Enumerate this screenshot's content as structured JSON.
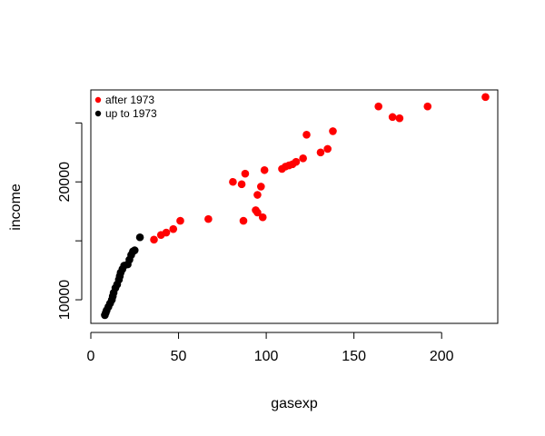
{
  "chart_data": {
    "type": "scatter",
    "title": "",
    "xlabel": "gasexp",
    "ylabel": "income",
    "xlim": [
      0,
      232
    ],
    "ylim": [
      8000,
      27800
    ],
    "x_ticks": [
      0,
      50,
      100,
      150,
      200
    ],
    "y_ticks": [
      10000,
      15000,
      20000,
      25000
    ],
    "y_tick_labels_shown": [
      "10000",
      "20000"
    ],
    "grid": false,
    "legend": {
      "placement": "top-left",
      "entries": [
        {
          "label": "after 1973",
          "color": "#ff0000"
        },
        {
          "label": "up to 1973",
          "color": "#000000"
        }
      ]
    },
    "series": [
      {
        "name": "after 1973",
        "color": "#ff0000",
        "points": [
          [
            36,
            15100
          ],
          [
            40,
            15500
          ],
          [
            43,
            15700
          ],
          [
            47,
            16000
          ],
          [
            51,
            16700
          ],
          [
            67,
            16850
          ],
          [
            81,
            20000
          ],
          [
            86,
            19800
          ],
          [
            87,
            16700
          ],
          [
            88,
            20700
          ],
          [
            94,
            17600
          ],
          [
            95,
            17400
          ],
          [
            95,
            18900
          ],
          [
            97,
            19600
          ],
          [
            98,
            17000
          ],
          [
            99,
            21000
          ],
          [
            109,
            21100
          ],
          [
            111,
            21300
          ],
          [
            113,
            21400
          ],
          [
            115,
            21500
          ],
          [
            117,
            21700
          ],
          [
            121,
            22000
          ],
          [
            123,
            24000
          ],
          [
            131,
            22500
          ],
          [
            135,
            22800
          ],
          [
            138,
            24300
          ],
          [
            164,
            26400
          ],
          [
            172,
            25500
          ],
          [
            176,
            25400
          ],
          [
            192,
            26400
          ],
          [
            225,
            27200
          ]
        ]
      },
      {
        "name": "up to 1973",
        "color": "#000000",
        "points": [
          [
            8,
            8700
          ],
          [
            8.5,
            8900
          ],
          [
            9,
            9100
          ],
          [
            10,
            9400
          ],
          [
            11,
            9700
          ],
          [
            12,
            10000
          ],
          [
            12.5,
            10300
          ],
          [
            13,
            10600
          ],
          [
            14,
            11000
          ],
          [
            15,
            11300
          ],
          [
            16,
            11700
          ],
          [
            16.5,
            12000
          ],
          [
            17,
            12300
          ],
          [
            18,
            12600
          ],
          [
            19,
            12900
          ],
          [
            21,
            13000
          ],
          [
            22,
            13400
          ],
          [
            23,
            13800
          ],
          [
            24,
            14100
          ],
          [
            25,
            14200
          ],
          [
            28,
            15300
          ]
        ]
      }
    ]
  }
}
